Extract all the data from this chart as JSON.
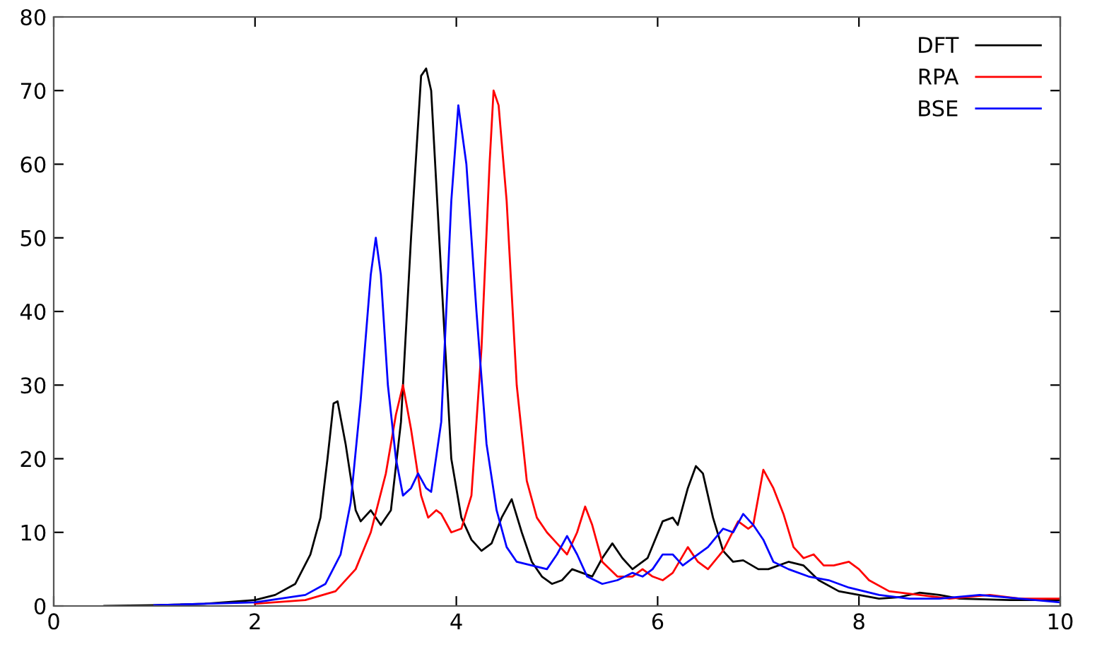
{
  "chart_data": {
    "type": "line",
    "xlim": [
      0,
      10
    ],
    "ylim": [
      0,
      80
    ],
    "xticks": [
      0,
      2,
      4,
      6,
      8,
      10
    ],
    "yticks": [
      0,
      10,
      20,
      30,
      40,
      50,
      60,
      70,
      80
    ],
    "grid": false,
    "legend": "top right",
    "marker": "none",
    "line_style": "solid",
    "series": [
      {
        "name": "DFT",
        "color": "#000000",
        "x": [
          0.5,
          1,
          1.5,
          2,
          2.2,
          2.4,
          2.55,
          2.65,
          2.72,
          2.78,
          2.82,
          2.9,
          3.0,
          3.05,
          3.15,
          3.25,
          3.35,
          3.45,
          3.55,
          3.65,
          3.7,
          3.75,
          3.85,
          3.95,
          4.05,
          4.15,
          4.25,
          4.35,
          4.45,
          4.55,
          4.65,
          4.75,
          4.85,
          4.95,
          5.05,
          5.15,
          5.25,
          5.35,
          5.45,
          5.55,
          5.65,
          5.75,
          5.9,
          6.05,
          6.15,
          6.2,
          6.3,
          6.38,
          6.45,
          6.55,
          6.65,
          6.75,
          6.85,
          7.0,
          7.1,
          7.3,
          7.45,
          7.6,
          7.8,
          8.0,
          8.2,
          8.4,
          8.6,
          8.8,
          9,
          9.5,
          10
        ],
        "values": [
          0,
          0.1,
          0.3,
          0.8,
          1.5,
          3,
          7,
          12,
          20,
          27.5,
          27.8,
          22,
          13,
          11.5,
          13,
          11,
          13,
          25,
          50,
          72,
          73,
          70,
          45,
          20,
          12,
          9,
          7.5,
          8.5,
          12,
          14.5,
          10,
          6,
          4,
          3,
          3.5,
          5,
          4.5,
          4,
          6.5,
          8.5,
          6.5,
          5,
          6.5,
          11.5,
          12,
          11,
          16,
          19,
          18,
          12,
          7.5,
          6,
          6.2,
          5,
          5,
          6,
          5.5,
          3.5,
          2,
          1.5,
          1,
          1.2,
          1.8,
          1.5,
          1,
          0.8,
          0.8
        ]
      },
      {
        "name": "RPA",
        "color": "#ff0000",
        "x": [
          2,
          2.5,
          2.8,
          3.0,
          3.15,
          3.3,
          3.4,
          3.47,
          3.55,
          3.65,
          3.72,
          3.8,
          3.85,
          3.95,
          4.05,
          4.15,
          4.25,
          4.33,
          4.37,
          4.42,
          4.5,
          4.6,
          4.7,
          4.8,
          4.9,
          5.0,
          5.1,
          5.2,
          5.28,
          5.35,
          5.45,
          5.6,
          5.75,
          5.85,
          5.95,
          6.05,
          6.15,
          6.3,
          6.4,
          6.5,
          6.65,
          6.8,
          6.9,
          6.95,
          7.05,
          7.15,
          7.25,
          7.35,
          7.45,
          7.55,
          7.65,
          7.75,
          7.9,
          8.0,
          8.1,
          8.3,
          8.6,
          8.9,
          9.3,
          9.6,
          10
        ],
        "values": [
          0.3,
          0.8,
          2,
          5,
          10,
          18,
          26,
          30,
          24,
          15,
          12,
          13,
          12.5,
          10,
          10.5,
          15,
          35,
          60,
          70,
          68,
          55,
          30,
          17,
          12,
          10,
          8.5,
          7,
          10,
          13.5,
          11,
          6,
          4,
          4,
          5,
          4,
          3.5,
          4.5,
          8,
          6,
          5,
          7.5,
          11.5,
          10.5,
          11,
          18.5,
          16,
          12.5,
          8,
          6.5,
          7,
          5.5,
          5.5,
          6,
          5,
          3.5,
          2,
          1.5,
          1,
          1.5,
          1,
          1
        ]
      },
      {
        "name": "BSE",
        "color": "#0000ff",
        "x": [
          1,
          2,
          2.5,
          2.7,
          2.85,
          2.95,
          3.05,
          3.15,
          3.2,
          3.25,
          3.32,
          3.4,
          3.47,
          3.55,
          3.62,
          3.7,
          3.75,
          3.85,
          3.95,
          4.02,
          4.1,
          4.2,
          4.3,
          4.4,
          4.5,
          4.6,
          4.75,
          4.9,
          5.0,
          5.1,
          5.2,
          5.3,
          5.45,
          5.6,
          5.75,
          5.85,
          5.95,
          6.05,
          6.15,
          6.25,
          6.35,
          6.5,
          6.65,
          6.75,
          6.85,
          6.95,
          7.05,
          7.15,
          7.3,
          7.5,
          7.7,
          7.9,
          8.2,
          8.5,
          8.8,
          9.2,
          9.6,
          10
        ],
        "values": [
          0.1,
          0.5,
          1.5,
          3,
          7,
          14,
          28,
          45,
          50,
          45,
          30,
          20,
          15,
          16,
          18,
          16,
          15.5,
          25,
          55,
          68,
          60,
          40,
          22,
          13,
          8,
          6,
          5.5,
          5,
          7,
          9.5,
          7,
          4,
          3,
          3.5,
          4.5,
          4,
          5,
          7,
          7,
          5.5,
          6.5,
          8,
          10.5,
          10,
          12.5,
          11,
          9,
          6,
          5,
          4,
          3.5,
          2.5,
          1.5,
          1,
          1,
          1.5,
          1,
          0.5
        ]
      }
    ]
  }
}
